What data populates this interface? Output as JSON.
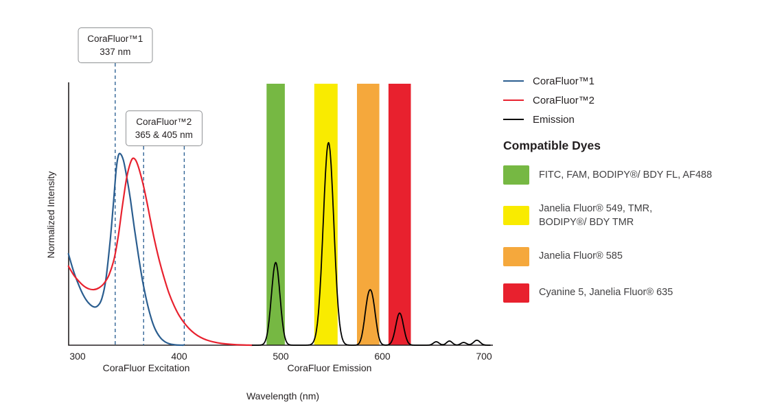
{
  "dyes": {
    "title": "Compatible Dyes",
    "items": [
      {
        "label": "FITC, FAM, BODIPY®/ BDY FL, AF488",
        "color": "#76b843"
      },
      {
        "label": "Janelia Fluor® 549, TMR,\nBODIPY®/ BDY TMR",
        "color": "#f9eb00"
      },
      {
        "label": "Janelia Fluor® 585",
        "color": "#f5a83c"
      },
      {
        "label": "Cyanine 5, Janelia Fluor® 635",
        "color": "#e8212e"
      }
    ]
  },
  "chart_data": {
    "type": "line",
    "title": "",
    "xlabel": "Wavelength (nm)",
    "ylabel": "Normalized Intensity",
    "x_axis_captions": [
      "CoraFluor Excitation",
      "CoraFluor Emission"
    ],
    "x_ticks": [
      300,
      400,
      500,
      600,
      700
    ],
    "xlim": [
      291,
      710
    ],
    "ylim": [
      0,
      1.06
    ],
    "grid": false,
    "legend": {
      "position": "top-right",
      "entries": [
        {
          "label": "CoraFluor™1",
          "color": "#2a5d8f"
        },
        {
          "label": "CoraFluor™2",
          "color": "#e8212e"
        },
        {
          "label": "Emission",
          "color": "#000000"
        }
      ]
    },
    "annotations": [
      {
        "label_line1": "CoraFluor™1",
        "label_line2": "337 nm",
        "lines_nm": [
          337
        ]
      },
      {
        "label_line1": "CoraFluor™2",
        "label_line2": "365 & 405 nm",
        "lines_nm": [
          365,
          405
        ]
      }
    ],
    "marker_line_color": "#2f6395",
    "bands": [
      {
        "name": "green",
        "from_nm": 486,
        "to_nm": 504,
        "color": "#76b843"
      },
      {
        "name": "yellow",
        "from_nm": 533,
        "to_nm": 556,
        "color": "#f9eb00"
      },
      {
        "name": "orange",
        "from_nm": 575,
        "to_nm": 597,
        "color": "#f5a83c"
      },
      {
        "name": "red",
        "from_nm": 606,
        "to_nm": 628,
        "color": "#e8212e"
      }
    ],
    "series": [
      {
        "id": "corafluor1-excitation",
        "name": "CoraFluor™1 excitation",
        "color": "#2a5d8f",
        "points": [
          [
            291,
            0.37
          ],
          [
            296,
            0.3
          ],
          [
            301,
            0.245
          ],
          [
            306,
            0.2
          ],
          [
            311,
            0.17
          ],
          [
            316,
            0.155
          ],
          [
            320,
            0.16
          ],
          [
            324,
            0.19
          ],
          [
            328,
            0.27
          ],
          [
            332,
            0.42
          ],
          [
            335,
            0.56
          ],
          [
            338,
            0.71
          ],
          [
            340,
            0.765
          ],
          [
            342,
            0.775
          ],
          [
            345,
            0.75
          ],
          [
            348,
            0.69
          ],
          [
            352,
            0.59
          ],
          [
            356,
            0.47
          ],
          [
            360,
            0.36
          ],
          [
            364,
            0.26
          ],
          [
            368,
            0.18
          ],
          [
            372,
            0.115
          ],
          [
            376,
            0.068
          ],
          [
            381,
            0.033
          ],
          [
            386,
            0.014
          ],
          [
            391,
            0.005
          ],
          [
            397,
            0.001
          ],
          [
            404,
            0
          ]
        ]
      },
      {
        "id": "corafluor2-excitation",
        "name": "CoraFluor™2 excitation",
        "color": "#e8212e",
        "points": [
          [
            291,
            0.32
          ],
          [
            296,
            0.285
          ],
          [
            301,
            0.26
          ],
          [
            306,
            0.24
          ],
          [
            311,
            0.228
          ],
          [
            316,
            0.225
          ],
          [
            321,
            0.232
          ],
          [
            326,
            0.25
          ],
          [
            331,
            0.285
          ],
          [
            336,
            0.35
          ],
          [
            340,
            0.44
          ],
          [
            344,
            0.56
          ],
          [
            348,
            0.67
          ],
          [
            351,
            0.725
          ],
          [
            354,
            0.755
          ],
          [
            357,
            0.75
          ],
          [
            360,
            0.72
          ],
          [
            364,
            0.66
          ],
          [
            368,
            0.585
          ],
          [
            372,
            0.5
          ],
          [
            376,
            0.42
          ],
          [
            380,
            0.35
          ],
          [
            385,
            0.275
          ],
          [
            390,
            0.21
          ],
          [
            395,
            0.16
          ],
          [
            400,
            0.12
          ],
          [
            405,
            0.09
          ],
          [
            410,
            0.066
          ],
          [
            415,
            0.048
          ],
          [
            421,
            0.032
          ],
          [
            427,
            0.021
          ],
          [
            434,
            0.013
          ],
          [
            442,
            0.007
          ],
          [
            452,
            0.003
          ],
          [
            462,
            0.001
          ],
          [
            472,
            0
          ]
        ]
      },
      {
        "id": "emission",
        "name": "Emission",
        "color": "#000000",
        "range_nm": [
          472,
          706
        ],
        "gaussians": [
          [
            495,
            0.335,
            4.2
          ],
          [
            547,
            0.82,
            5.2
          ],
          [
            585.5,
            0.145,
            3.5
          ],
          [
            590.5,
            0.145,
            3.5
          ],
          [
            617,
            0.13,
            3.8
          ],
          [
            653,
            0.014,
            2.8
          ],
          [
            666,
            0.017,
            2.8
          ],
          [
            680,
            0.011,
            2.8
          ],
          [
            693,
            0.02,
            3.2
          ]
        ]
      }
    ]
  }
}
